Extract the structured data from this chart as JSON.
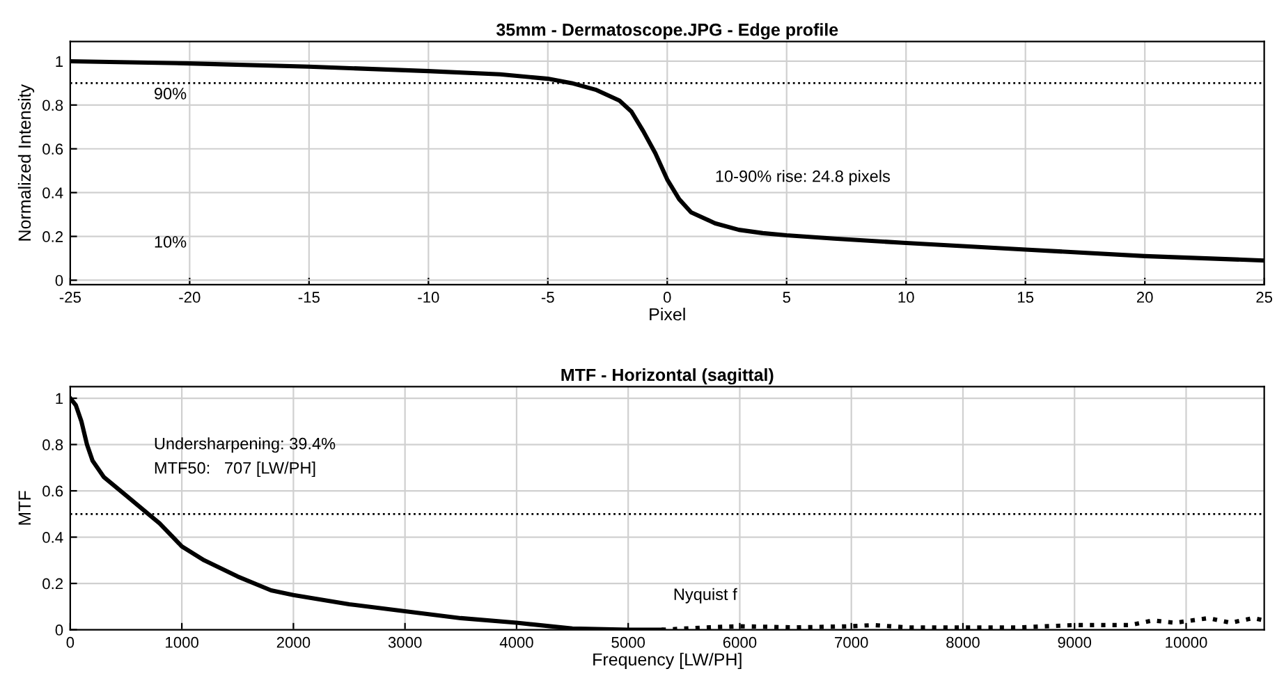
{
  "chart_data": [
    {
      "type": "line",
      "title": "35mm - Dermatoscope.JPG - Edge profile",
      "xlabel": "Pixel",
      "ylabel": "Normalized Intensity",
      "xlim": [
        -25,
        25
      ],
      "ylim": [
        -0.02,
        1.09
      ],
      "xticks": [
        -25,
        -20,
        -15,
        -10,
        -5,
        0,
        5,
        10,
        15,
        20,
        25
      ],
      "yticks": [
        0,
        0.2,
        0.4,
        0.6,
        0.8,
        1
      ],
      "grid": true,
      "legend": false,
      "line_style": "solid",
      "series": [
        {
          "color": "#000000",
          "x": [
            -25,
            -20,
            -15,
            -10,
            -7,
            -5,
            -4,
            -3,
            -2,
            -1.5,
            -1,
            -0.5,
            0,
            0.5,
            1,
            2,
            3,
            4,
            5,
            7,
            10,
            15,
            20,
            25
          ],
          "values": [
            1.0,
            0.99,
            0.975,
            0.955,
            0.94,
            0.92,
            0.9,
            0.87,
            0.82,
            0.77,
            0.68,
            0.58,
            0.46,
            0.37,
            0.31,
            0.26,
            0.23,
            0.215,
            0.205,
            0.19,
            0.17,
            0.14,
            0.11,
            0.09
          ]
        }
      ],
      "ref_lines": [
        {
          "axis": "y",
          "value": 0.9,
          "line_style": "dotted",
          "color": "#000000"
        }
      ],
      "annotations": [
        "90%",
        "10%",
        "10-90% rise: 24.8 pixels"
      ]
    },
    {
      "type": "line",
      "title": "MTF - Horizontal (sagittal)",
      "xlabel": "Frequency [LW/PH]",
      "ylabel": "MTF",
      "xlim": [
        0,
        10700
      ],
      "ylim": [
        0,
        1.05
      ],
      "xticks": [
        0,
        1000,
        2000,
        3000,
        4000,
        5000,
        6000,
        7000,
        8000,
        9000,
        10000
      ],
      "yticks": [
        0,
        0.2,
        0.4,
        0.6,
        0.8,
        1
      ],
      "grid": true,
      "legend": false,
      "series": [
        {
          "color": "#000000",
          "line_style": "solid",
          "x": [
            0,
            50,
            100,
            150,
            200,
            300,
            500,
            700,
            800,
            1000,
            1200,
            1500,
            1800,
            2000,
            2500,
            3000,
            3500,
            4000,
            4500,
            5000,
            5300
          ],
          "values": [
            1.0,
            0.97,
            0.9,
            0.8,
            0.73,
            0.66,
            0.58,
            0.5,
            0.46,
            0.36,
            0.3,
            0.23,
            0.17,
            0.15,
            0.11,
            0.08,
            0.05,
            0.03,
            0.005,
            0.0,
            0.0
          ]
        },
        {
          "color": "#000000",
          "line_style": "dotted",
          "x": [
            5300,
            5700,
            6000,
            6500,
            7000,
            7200,
            7500,
            8000,
            8500,
            9000,
            9500,
            9700,
            9900,
            10200,
            10400,
            10600,
            10700
          ],
          "values": [
            0.0,
            0.01,
            0.015,
            0.01,
            0.015,
            0.02,
            0.01,
            0.01,
            0.01,
            0.02,
            0.02,
            0.04,
            0.03,
            0.05,
            0.03,
            0.05,
            0.04
          ]
        }
      ],
      "ref_lines": [
        {
          "axis": "y",
          "value": 0.5,
          "line_style": "dotted",
          "color": "#000000"
        }
      ],
      "annotations": [
        "Undersharpening: 39.4%",
        "MTF50:   707 [LW/PH]",
        "Nyquist f"
      ]
    }
  ]
}
